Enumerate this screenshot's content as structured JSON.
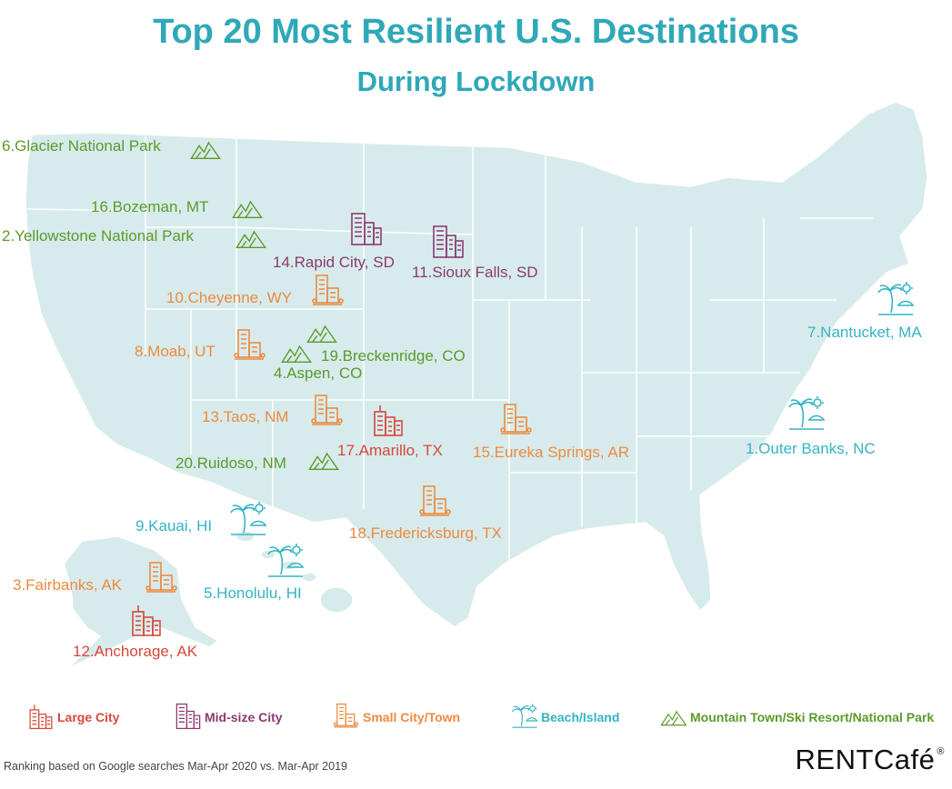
{
  "title": "Top 20 Most Resilient U.S. Destinations",
  "subtitle": "During Lockdown",
  "colors": {
    "map_fill": "#d7ebec",
    "map_line": "#ffffff",
    "large": "#d9473b",
    "mid": "#8b3a72",
    "small": "#ee8a40",
    "beach": "#35b3c3",
    "mountain": "#5c9a2a",
    "title": "#2fa8b8"
  },
  "destinations": [
    {
      "label": "1.Outer Banks, NC",
      "category": "beach"
    },
    {
      "label": "2.Yellowstone National Park",
      "category": "mountain"
    },
    {
      "label": "3.Fairbanks, AK",
      "category": "small"
    },
    {
      "label": "4.Aspen, CO",
      "category": "mountain"
    },
    {
      "label": "5.Honolulu, HI",
      "category": "beach"
    },
    {
      "label": "6.Glacier National Park",
      "category": "mountain"
    },
    {
      "label": "7.Nantucket, MA",
      "category": "beach"
    },
    {
      "label": "8.Moab, UT",
      "category": "small"
    },
    {
      "label": "9.Kauai, HI",
      "category": "beach"
    },
    {
      "label": "10.Cheyenne, WY",
      "category": "small"
    },
    {
      "label": "11.Sioux Falls, SD",
      "category": "mid"
    },
    {
      "label": "12.Anchorage, AK",
      "category": "large"
    },
    {
      "label": "13.Taos, NM",
      "category": "small"
    },
    {
      "label": "14.Rapid City, SD",
      "category": "mid"
    },
    {
      "label": "15.Eureka Springs, AR",
      "category": "small"
    },
    {
      "label": "16.Bozeman, MT",
      "category": "mountain"
    },
    {
      "label": "17.Amarillo, TX",
      "category": "large"
    },
    {
      "label": "18.Fredericksburg, TX",
      "category": "small"
    },
    {
      "label": "19.Breckenridge, CO",
      "category": "mountain"
    },
    {
      "label": "20.Ruidoso, NM",
      "category": "mountain"
    }
  ],
  "legend": [
    {
      "label": "Large City",
      "category": "large",
      "icon": "large-city-icon"
    },
    {
      "label": "Mid-size City",
      "category": "mid",
      "icon": "mid-size-city-icon"
    },
    {
      "label": "Small City/Town",
      "category": "small",
      "icon": "small-city-icon"
    },
    {
      "label": "Beach/Island",
      "category": "beach",
      "icon": "beach-icon"
    },
    {
      "label": "Mountain Town/Ski Resort/National Park",
      "category": "mountain",
      "icon": "mountain-icon"
    }
  ],
  "footnote": "Ranking based on Google searches Mar-Apr 2020 vs. Mar-Apr 2019",
  "brand": {
    "name": "RENTCafé",
    "mark": "®"
  }
}
